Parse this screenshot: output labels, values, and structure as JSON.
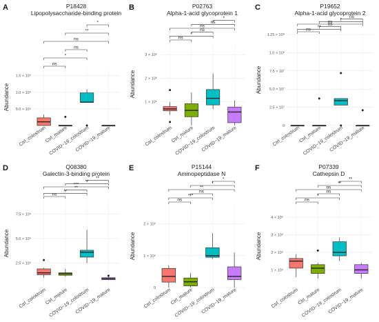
{
  "chart_data": [
    {
      "type": "box",
      "letter": "A",
      "title": "P18428",
      "subtitle": "Lipopolysaccharide-binding protein",
      "ylabel": "Abundance",
      "ylim": [
        0,
        1700000
      ],
      "yticks": [
        {
          "v": 500000,
          "label": "5.0 × 10⁵"
        },
        {
          "v": 1000000,
          "label": "1.0 × 10⁶"
        },
        {
          "v": 1500000,
          "label": "1.5 × 10⁶"
        }
      ],
      "categories": [
        "Ctrl_colostrum",
        "Ctrl_mature",
        "COVID−19_colostrum",
        "COVID−19_mature"
      ],
      "colors": [
        "#F8766D",
        "#7CAE00",
        "#00BFC4",
        "#C77CFF"
      ],
      "boxes": [
        {
          "min": 0,
          "q1": 0,
          "median": 110000,
          "q3": 230000,
          "max": 330000,
          "outliers": []
        },
        {
          "min": 0,
          "q1": 0,
          "median": 0,
          "q3": 0,
          "max": 0,
          "outliers": [
            260000
          ]
        },
        {
          "min": 700000,
          "q1": 700000,
          "median": 700000,
          "q3": 980000,
          "max": 1090000,
          "outliers": [
            0
          ]
        },
        {
          "min": 0,
          "q1": 0,
          "median": 0,
          "q3": 0,
          "max": 0,
          "outliers": []
        }
      ],
      "brackets": [
        {
          "from": 0,
          "to": 1,
          "label": "ns"
        },
        {
          "from": 0,
          "to": 2,
          "label": "*"
        },
        {
          "from": 1,
          "to": 2,
          "label": "ns"
        },
        {
          "from": 0,
          "to": 3,
          "label": "ns"
        },
        {
          "from": 1,
          "to": 3,
          "label": "**"
        },
        {
          "from": 2,
          "to": 3,
          "label": "*"
        }
      ]
    },
    {
      "type": "box",
      "letter": "B",
      "title": "P02763",
      "subtitle": "Alpha-1-acid glycoprotein 1",
      "ylabel": "Abundance",
      "ylim": [
        0,
        3500000
      ],
      "yticks": [
        {
          "v": 1000000,
          "label": "1 × 10⁶"
        },
        {
          "v": 2000000,
          "label": "2 × 10⁶"
        },
        {
          "v": 3000000,
          "label": "3 × 10⁶"
        }
      ],
      "categories": [
        "Ctrl_colostrum",
        "Ctrl_mature",
        "COVID−19_colostrum",
        "COVID−19_mature"
      ],
      "colors": [
        "#F8766D",
        "#7CAE00",
        "#00BFC4",
        "#C77CFF"
      ],
      "boxes": [
        {
          "min": 450000,
          "q1": 620000,
          "median": 700000,
          "q3": 800000,
          "max": 1000000,
          "outliers": [
            1500000,
            150000
          ]
        },
        {
          "min": 0,
          "q1": 370000,
          "median": 640000,
          "q3": 920000,
          "max": 1400000,
          "outliers": []
        },
        {
          "min": 700000,
          "q1": 870000,
          "median": 1150000,
          "q3": 1520000,
          "max": 2200000,
          "outliers": []
        },
        {
          "min": 0,
          "q1": 120000,
          "median": 570000,
          "q3": 780000,
          "max": 1060000,
          "outliers": []
        }
      ],
      "brackets": [
        {
          "from": 0,
          "to": 1,
          "label": "ns"
        },
        {
          "from": 0,
          "to": 2,
          "label": "*"
        },
        {
          "from": 1,
          "to": 2,
          "label": "ns"
        },
        {
          "from": 0,
          "to": 3,
          "label": "ns"
        },
        {
          "from": 1,
          "to": 3,
          "label": "ns"
        },
        {
          "from": 2,
          "to": 3,
          "label": "*"
        }
      ]
    },
    {
      "type": "box",
      "letter": "C",
      "title": "P19652",
      "subtitle": "Alpha-1-acid glycoprotein 2",
      "ylabel": "Abundance",
      "ylim": [
        0,
        125000000
      ],
      "yticks": [
        {
          "v": 0,
          "label": "0"
        },
        {
          "v": 25000000,
          "label": "2.5 × 10⁷"
        },
        {
          "v": 50000000,
          "label": "5.0 × 10⁷"
        },
        {
          "v": 75000000,
          "label": "7.5 × 10⁷"
        },
        {
          "v": 100000000,
          "label": "1.0 × 10⁸"
        },
        {
          "v": 125000000,
          "label": "1.25 × 10⁸"
        }
      ],
      "categories": [
        "Ctrl_colostrum",
        "Ctrl_mature",
        "COVID−19_colostrum",
        "COVID−19_mature"
      ],
      "colors": [
        "#F8766D",
        "#7CAE00",
        "#00BFC4",
        "#C77CFF"
      ],
      "boxes": [
        {
          "min": 0,
          "q1": 0,
          "median": 0,
          "q3": 0,
          "max": 0,
          "outliers": []
        },
        {
          "min": 0,
          "q1": 0,
          "median": 0,
          "q3": 0,
          "max": 0,
          "outliers": [
            37000000
          ]
        },
        {
          "min": 28000000,
          "q1": 28000000,
          "median": 34000000,
          "q3": 37000000,
          "max": 37000000,
          "outliers": [
            72000000,
            0
          ]
        },
        {
          "min": 0,
          "q1": 0,
          "median": 0,
          "q3": 0,
          "max": 0,
          "outliers": [
            21000000
          ]
        }
      ],
      "brackets": [
        {
          "from": 0,
          "to": 1,
          "label": "ns"
        },
        {
          "from": 0,
          "to": 2,
          "label": "**"
        },
        {
          "from": 1,
          "to": 2,
          "label": "ns"
        },
        {
          "from": 0,
          "to": 3,
          "label": "ns"
        },
        {
          "from": 1,
          "to": 3,
          "label": "*"
        },
        {
          "from": 2,
          "to": 3,
          "label": "ns"
        }
      ]
    },
    {
      "type": "box",
      "letter": "D",
      "title": "Q08380",
      "subtitle": "Galectin-3-binding protein",
      "ylabel": "Abundance",
      "ylim": [
        0,
        9000000
      ],
      "yticks": [
        {
          "v": 2500000,
          "label": "2.5 × 10⁶"
        },
        {
          "v": 5000000,
          "label": "5.0 × 10⁶"
        },
        {
          "v": 7500000,
          "label": "7.5 × 10⁶"
        }
      ],
      "categories": [
        "Ctrl_colostrum",
        "Ctrl_mature",
        "COVID−19_colostrum",
        "COVID−19_mature"
      ],
      "colors": [
        "#F8766D",
        "#7CAE00",
        "#00BFC4",
        "#C77CFF"
      ],
      "boxes": [
        {
          "min": 1000000,
          "q1": 1300000,
          "median": 1500000,
          "q3": 1900000,
          "max": 2000000,
          "outliers": [
            2800000
          ]
        },
        {
          "min": 1100000,
          "q1": 1250000,
          "median": 1400000,
          "q3": 1500000,
          "max": 1900000,
          "outliers": []
        },
        {
          "min": 2500000,
          "q1": 3100000,
          "median": 3600000,
          "q3": 3800000,
          "max": 5900000,
          "outliers": []
        },
        {
          "min": 800000,
          "q1": 800000,
          "median": 900000,
          "q3": 1000000,
          "max": 1100000,
          "outliers": [
            1200000
          ]
        }
      ],
      "brackets": [
        {
          "from": 0,
          "to": 1,
          "label": "ns"
        },
        {
          "from": 0,
          "to": 2,
          "label": "**"
        },
        {
          "from": 1,
          "to": 2,
          "label": "**"
        },
        {
          "from": 0,
          "to": 3,
          "label": "***"
        },
        {
          "from": 1,
          "to": 3,
          "label": "**"
        },
        {
          "from": 2,
          "to": 3,
          "label": "**"
        }
      ]
    },
    {
      "type": "box",
      "letter": "E",
      "title": "P15144",
      "subtitle": "Aminopeptidase N",
      "ylabel": "Abundance",
      "ylim": [
        0,
        2600000
      ],
      "yticks": [
        {
          "v": 0,
          "label": "0"
        },
        {
          "v": 1000000,
          "label": "1 × 10⁶"
        },
        {
          "v": 2000000,
          "label": "2 × 10⁶"
        }
      ],
      "categories": [
        "Ctrl_colostrum",
        "Ctrl_mature",
        "COVID−19_colostrum",
        "COVID−19_mature"
      ],
      "colors": [
        "#F8766D",
        "#7CAE00",
        "#00BFC4",
        "#C77CFF"
      ],
      "boxes": [
        {
          "min": 0,
          "q1": 170000,
          "median": 350000,
          "q3": 600000,
          "max": 700000,
          "outliers": []
        },
        {
          "min": 0,
          "q1": 50000,
          "median": 180000,
          "q3": 300000,
          "max": 450000,
          "outliers": []
        },
        {
          "min": 900000,
          "q1": 950000,
          "median": 1000000,
          "q3": 1250000,
          "max": 1700000,
          "outliers": []
        },
        {
          "min": 0,
          "q1": 250000,
          "median": 350000,
          "q3": 650000,
          "max": 1100000,
          "outliers": []
        }
      ],
      "brackets": [
        {
          "from": 0,
          "to": 1,
          "label": "ns"
        },
        {
          "from": 0,
          "to": 2,
          "label": "***"
        },
        {
          "from": 1,
          "to": 2,
          "label": "ns"
        },
        {
          "from": 0,
          "to": 3,
          "label": "**"
        },
        {
          "from": 1,
          "to": 3,
          "label": "*"
        },
        {
          "from": 2,
          "to": 3,
          "label": "*"
        }
      ]
    },
    {
      "type": "box",
      "letter": "F",
      "title": "P07339",
      "subtitle": "Cathepsin D",
      "ylabel": "Abundance",
      "ylim": [
        0,
        4700000
      ],
      "yticks": [
        {
          "v": 1000000,
          "label": "1 × 10⁶"
        },
        {
          "v": 2000000,
          "label": "2 × 10⁶"
        },
        {
          "v": 3000000,
          "label": "3 × 10⁶"
        },
        {
          "v": 4000000,
          "label": "4 × 10⁶"
        }
      ],
      "categories": [
        "Ctrl_colostrum",
        "Ctrl_mature",
        "COVID−19_colostrum",
        "COVID−19_mature"
      ],
      "colors": [
        "#F8766D",
        "#7CAE00",
        "#00BFC4",
        "#C77CFF"
      ],
      "boxes": [
        {
          "min": 600000,
          "q1": 1100000,
          "median": 1500000,
          "q3": 1650000,
          "max": 1900000,
          "outliers": []
        },
        {
          "min": 500000,
          "q1": 800000,
          "median": 1100000,
          "q3": 1300000,
          "max": 1400000,
          "outliers": [
            2100000
          ]
        },
        {
          "min": 1500000,
          "q1": 1800000,
          "median": 2000000,
          "q3": 2600000,
          "max": 2850000,
          "outliers": []
        },
        {
          "min": 500000,
          "q1": 800000,
          "median": 1000000,
          "q3": 1300000,
          "max": 1400000,
          "outliers": []
        }
      ],
      "brackets": [
        {
          "from": 0,
          "to": 1,
          "label": "ns"
        },
        {
          "from": 0,
          "to": 2,
          "label": "*"
        },
        {
          "from": 1,
          "to": 2,
          "label": "ns"
        },
        {
          "from": 0,
          "to": 3,
          "label": "ns"
        },
        {
          "from": 1,
          "to": 3,
          "label": "**"
        },
        {
          "from": 2,
          "to": 3,
          "label": "**"
        }
      ]
    }
  ]
}
